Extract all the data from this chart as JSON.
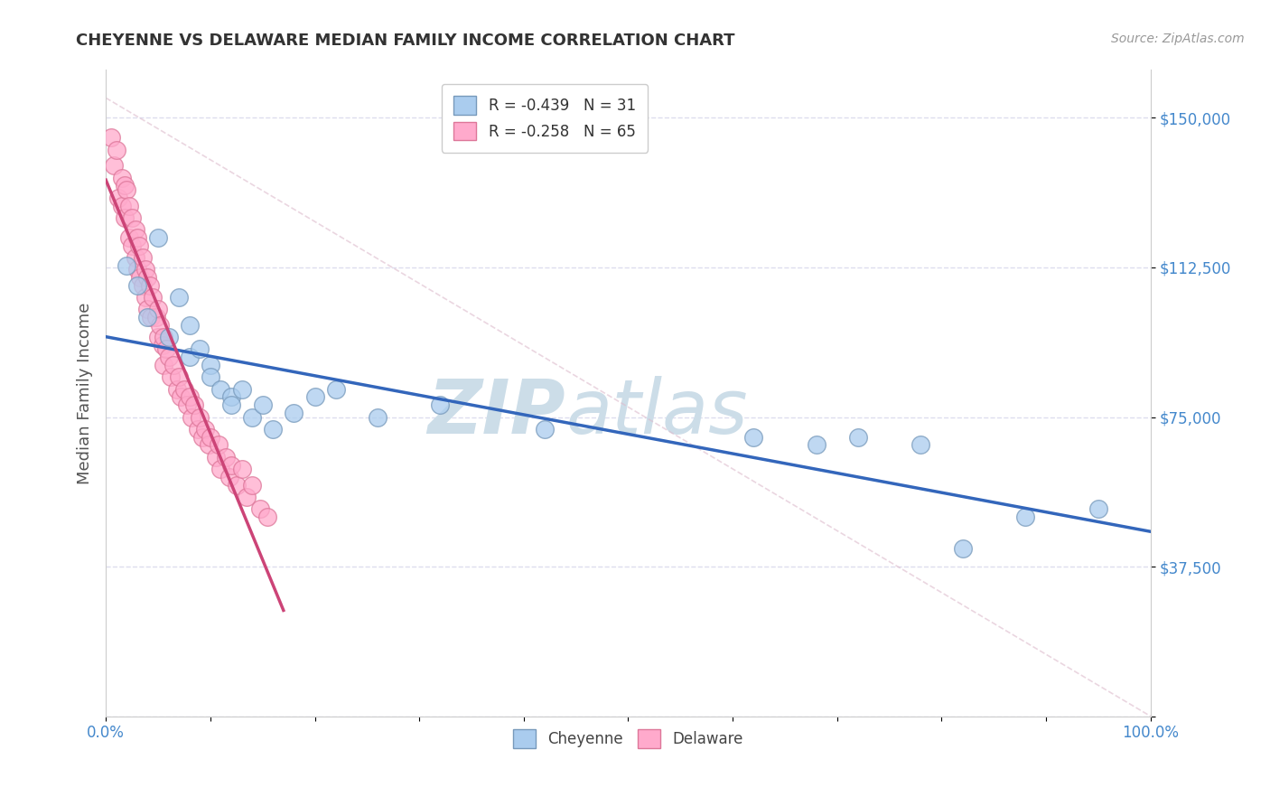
{
  "title": "CHEYENNE VS DELAWARE MEDIAN FAMILY INCOME CORRELATION CHART",
  "source": "Source: ZipAtlas.com",
  "ylabel": "Median Family Income",
  "yticks": [
    0,
    37500,
    75000,
    112500,
    150000
  ],
  "ytick_labels": [
    "",
    "$37,500",
    "$75,000",
    "$112,500",
    "$150,000"
  ],
  "xlim": [
    0.0,
    1.0
  ],
  "ylim": [
    0,
    162000
  ],
  "cheyenne_color": "#aaccee",
  "delaware_color": "#ffaacc",
  "cheyenne_edge": "#7799bb",
  "delaware_edge": "#dd7799",
  "cheyenne_line_color": "#3366bb",
  "delaware_line_color": "#cc4477",
  "legend_R_cheyenne": "R = -0.439",
  "legend_N_cheyenne": "N = 31",
  "legend_R_delaware": "R = -0.258",
  "legend_N_delaware": "N = 65",
  "cheyenne_x": [
    0.02,
    0.03,
    0.04,
    0.05,
    0.06,
    0.07,
    0.08,
    0.08,
    0.09,
    0.1,
    0.1,
    0.11,
    0.12,
    0.12,
    0.13,
    0.14,
    0.15,
    0.16,
    0.18,
    0.2,
    0.22,
    0.26,
    0.32,
    0.42,
    0.62,
    0.68,
    0.72,
    0.78,
    0.82,
    0.88,
    0.95
  ],
  "cheyenne_y": [
    113000,
    108000,
    100000,
    120000,
    95000,
    105000,
    98000,
    90000,
    92000,
    88000,
    85000,
    82000,
    80000,
    78000,
    82000,
    75000,
    78000,
    72000,
    76000,
    80000,
    82000,
    75000,
    78000,
    72000,
    70000,
    68000,
    70000,
    68000,
    42000,
    50000,
    52000
  ],
  "delaware_x": [
    0.005,
    0.008,
    0.01,
    0.012,
    0.015,
    0.015,
    0.018,
    0.018,
    0.02,
    0.022,
    0.022,
    0.025,
    0.025,
    0.028,
    0.028,
    0.03,
    0.03,
    0.032,
    0.033,
    0.035,
    0.035,
    0.038,
    0.038,
    0.04,
    0.04,
    0.042,
    0.043,
    0.045,
    0.048,
    0.05,
    0.05,
    0.052,
    0.054,
    0.055,
    0.055,
    0.058,
    0.06,
    0.062,
    0.065,
    0.068,
    0.07,
    0.072,
    0.075,
    0.078,
    0.08,
    0.082,
    0.085,
    0.088,
    0.09,
    0.092,
    0.095,
    0.098,
    0.1,
    0.105,
    0.108,
    0.11,
    0.115,
    0.118,
    0.12,
    0.125,
    0.13,
    0.135,
    0.14,
    0.148,
    0.155
  ],
  "delaware_y": [
    145000,
    138000,
    142000,
    130000,
    135000,
    128000,
    133000,
    125000,
    132000,
    128000,
    120000,
    125000,
    118000,
    122000,
    115000,
    120000,
    112000,
    118000,
    110000,
    115000,
    108000,
    112000,
    105000,
    110000,
    102000,
    108000,
    100000,
    105000,
    100000,
    102000,
    95000,
    98000,
    93000,
    95000,
    88000,
    92000,
    90000,
    85000,
    88000,
    82000,
    85000,
    80000,
    82000,
    78000,
    80000,
    75000,
    78000,
    72000,
    75000,
    70000,
    72000,
    68000,
    70000,
    65000,
    68000,
    62000,
    65000,
    60000,
    63000,
    58000,
    62000,
    55000,
    58000,
    52000,
    50000
  ],
  "background_color": "#ffffff",
  "grid_color": "#ddddee",
  "title_color": "#333333",
  "axis_label_color": "#4488cc",
  "watermark_color": "#ccdde8"
}
